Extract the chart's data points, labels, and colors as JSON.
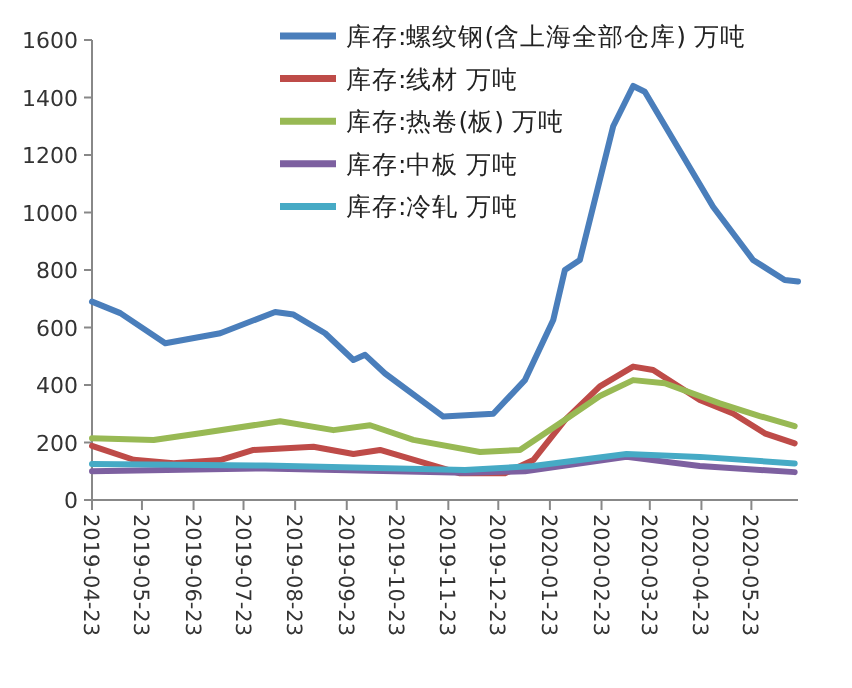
{
  "chart_data": {
    "type": "line",
    "xlim": [
      "2019-04-23",
      "2020-06-20"
    ],
    "ylim": [
      0,
      1600
    ],
    "yticks": [
      0,
      200,
      400,
      600,
      800,
      1000,
      1200,
      1400,
      1600
    ],
    "xticks": [
      "2019-04-23",
      "2019-05-23",
      "2019-06-23",
      "2019-07-23",
      "2019-08-23",
      "2019-09-23",
      "2019-10-23",
      "2019-11-23",
      "2019-12-23",
      "2020-01-23",
      "2020-02-23",
      "2020-03-23",
      "2020-04-23",
      "2020-05-23"
    ],
    "grid": false,
    "legend": "top",
    "marker": "none",
    "line_style": "solid",
    "series": [
      {
        "name": "库存:螺纹钢(含上海全部仓库) 万吨",
        "color": "#4a7ebb",
        "x": [
          "2019-04-23",
          "2019-05-10",
          "2019-06-06",
          "2019-07-09",
          "2019-08-11",
          "2019-08-22",
          "2019-09-10",
          "2019-09-27",
          "2019-10-04",
          "2019-10-16",
          "2019-11-20",
          "2019-12-20",
          "2020-01-08",
          "2020-01-25",
          "2020-02-01",
          "2020-02-10",
          "2020-03-01",
          "2020-03-13",
          "2020-03-20",
          "2020-04-30",
          "2020-05-24",
          "2020-06-12",
          "2020-06-20"
        ],
        "values": [
          690,
          650,
          545,
          580,
          654,
          645,
          580,
          487,
          505,
          440,
          290,
          300,
          417,
          626,
          800,
          835,
          1300,
          1440,
          1420,
          1020,
          835,
          765,
          760
        ]
      },
      {
        "name": "库存:线材 万吨",
        "color": "#be4b48",
        "x": [
          "2019-04-23",
          "2019-05-18",
          "2019-06-11",
          "2019-07-09",
          "2019-07-29",
          "2019-09-03",
          "2019-09-27",
          "2019-10-13",
          "2019-11-30",
          "2019-12-27",
          "2020-01-13",
          "2020-02-01",
          "2020-02-22",
          "2020-03-13",
          "2020-03-25",
          "2020-04-22",
          "2020-05-12",
          "2020-05-31",
          "2020-06-18"
        ],
        "values": [
          188,
          140,
          128,
          139,
          174,
          185,
          160,
          174,
          93,
          93,
          139,
          278,
          395,
          464,
          452,
          348,
          301,
          232,
          197
        ]
      },
      {
        "name": "库存:热卷(板) 万吨",
        "color": "#98b954",
        "x": [
          "2019-04-23",
          "2019-05-30",
          "2019-06-27",
          "2019-08-14",
          "2019-09-15",
          "2019-10-07",
          "2019-11-02",
          "2019-12-12",
          "2020-01-05",
          "2020-01-29",
          "2020-02-22",
          "2020-03-13",
          "2020-04-01",
          "2020-05-04",
          "2020-05-28",
          "2020-06-18"
        ],
        "values": [
          215,
          209,
          232,
          274,
          243,
          260,
          209,
          167,
          174,
          267,
          362,
          417,
          406,
          336,
          292,
          257
        ]
      },
      {
        "name": "库存:中板 万吨",
        "color": "#7d60a0",
        "x": [
          "2019-04-23",
          "2019-08-05",
          "2019-12-03",
          "2020-01-08",
          "2020-03-09",
          "2020-04-22",
          "2020-06-18"
        ],
        "values": [
          100,
          110,
          95,
          100,
          150,
          118,
          97
        ]
      },
      {
        "name": "库存:冷轧 万吨",
        "color": "#46aac5",
        "x": [
          "2019-04-23",
          "2019-08-05",
          "2019-12-03",
          "2020-01-13",
          "2020-03-09",
          "2020-04-22",
          "2020-06-18"
        ],
        "values": [
          125,
          120,
          104,
          118,
          160,
          150,
          127
        ]
      }
    ]
  }
}
